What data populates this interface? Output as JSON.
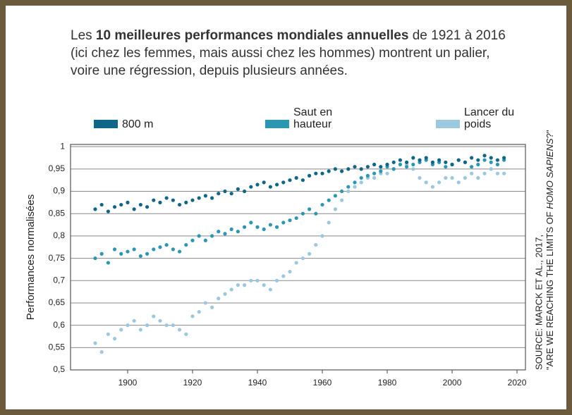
{
  "chart_data": {
    "type": "scatter",
    "title": [
      "Les ",
      "10 meilleures performances mondiales annuelles",
      " de 1921 à 2016 (ici chez les femmes, mais aussi chez les hommes) montrent un palier, voire une régression, depuis plusieurs années."
    ],
    "ylabel": "Performances normalisées",
    "source": [
      "SOURCE: MARCK ET AL., 2017,",
      "\"ARE WE REACHING THE LIMITS OF ",
      "HOMO SAPIENS",
      "?\""
    ],
    "x": [
      1890,
      1892,
      1894,
      1896,
      1898,
      1900,
      1902,
      1904,
      1906,
      1908,
      1910,
      1912,
      1914,
      1916,
      1918,
      1920,
      1922,
      1924,
      1926,
      1928,
      1930,
      1932,
      1934,
      1936,
      1938,
      1940,
      1942,
      1944,
      1946,
      1948,
      1950,
      1952,
      1954,
      1956,
      1958,
      1960,
      1962,
      1964,
      1966,
      1968,
      1970,
      1972,
      1974,
      1976,
      1978,
      1980,
      1982,
      1984,
      1986,
      1988,
      1990,
      1992,
      1994,
      1996,
      1998,
      2000,
      2002,
      2004,
      2006,
      2008,
      2010,
      2012,
      2014,
      2016
    ],
    "series": [
      {
        "name": "800 m",
        "color": "#0f6688",
        "values": [
          0.86,
          0.87,
          0.855,
          0.865,
          0.87,
          0.875,
          0.86,
          0.87,
          0.865,
          0.88,
          0.875,
          0.885,
          0.88,
          0.87,
          0.875,
          0.88,
          0.885,
          0.89,
          0.885,
          0.895,
          0.9,
          0.895,
          0.905,
          0.9,
          0.91,
          0.915,
          0.92,
          0.91,
          0.915,
          0.92,
          0.925,
          0.93,
          0.925,
          0.935,
          0.94,
          0.94,
          0.945,
          0.95,
          0.945,
          0.95,
          0.955,
          0.95,
          0.955,
          0.96,
          0.955,
          0.96,
          0.965,
          0.97,
          0.965,
          0.975,
          0.97,
          0.975,
          0.965,
          0.97,
          0.965,
          0.96,
          0.97,
          0.965,
          0.975,
          0.97,
          0.98,
          0.975,
          0.97,
          0.975
        ]
      },
      {
        "name": "Saut en hauteur",
        "color": "#2b97b3",
        "values": [
          0.75,
          0.76,
          0.74,
          0.77,
          0.76,
          0.765,
          0.77,
          0.755,
          0.76,
          0.77,
          0.775,
          0.78,
          0.77,
          0.765,
          0.78,
          0.79,
          0.8,
          0.79,
          0.8,
          0.81,
          0.805,
          0.815,
          0.81,
          0.82,
          0.83,
          0.82,
          0.815,
          0.825,
          0.82,
          0.83,
          0.835,
          0.84,
          0.85,
          0.86,
          0.85,
          0.87,
          0.88,
          0.89,
          0.9,
          0.91,
          0.92,
          0.93,
          0.935,
          0.94,
          0.945,
          0.955,
          0.95,
          0.96,
          0.955,
          0.96,
          0.965,
          0.97,
          0.96,
          0.965,
          0.955,
          0.96,
          0.97,
          0.965,
          0.955,
          0.96,
          0.97,
          0.965,
          0.96,
          0.97
        ]
      },
      {
        "name": "Lancer du poids",
        "color": "#9ac8de",
        "values": [
          0.56,
          0.54,
          0.58,
          0.57,
          0.59,
          0.6,
          0.61,
          0.59,
          0.6,
          0.62,
          0.61,
          0.6,
          0.6,
          0.59,
          0.58,
          0.62,
          0.63,
          0.65,
          0.64,
          0.66,
          0.67,
          0.68,
          0.69,
          0.69,
          0.7,
          0.7,
          0.69,
          0.68,
          0.7,
          0.71,
          0.72,
          0.74,
          0.75,
          0.76,
          0.78,
          0.8,
          0.83,
          0.86,
          0.88,
          0.9,
          0.91,
          0.92,
          0.93,
          0.93,
          0.94,
          0.94,
          0.95,
          0.96,
          0.96,
          0.95,
          0.93,
          0.92,
          0.91,
          0.92,
          0.93,
          0.93,
          0.92,
          0.93,
          0.94,
          0.93,
          0.94,
          0.95,
          0.94,
          0.94
        ]
      }
    ],
    "xlim": [
      1882.4,
      2022.6
    ],
    "ylim": [
      0.5,
      1.005
    ],
    "xticks": [
      1900,
      1920,
      1940,
      1960,
      1980,
      2000,
      2020
    ],
    "yticks": [
      {
        "value": 0.5,
        "label": "0,5"
      },
      {
        "value": 0.55,
        "label": "0,55"
      },
      {
        "value": 0.6,
        "label": "0,6"
      },
      {
        "value": 0.65,
        "label": "0,65"
      },
      {
        "value": 0.7,
        "label": "0,7"
      },
      {
        "value": 0.75,
        "label": "0,75"
      },
      {
        "value": 0.8,
        "label": "0,8"
      },
      {
        "value": 0.85,
        "label": "0,85"
      },
      {
        "value": 0.9,
        "label": "0,9"
      },
      {
        "value": 0.95,
        "label": "0,95"
      },
      1
    ],
    "grid": true
  }
}
